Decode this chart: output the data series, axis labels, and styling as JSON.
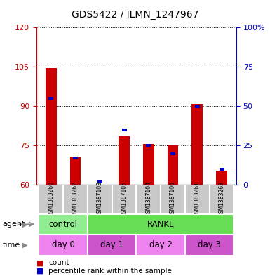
{
  "title": "GDS5422 / ILMN_1247967",
  "samples": [
    "GSM1383260",
    "GSM1383262",
    "GSM1387103",
    "GSM1387105",
    "GSM1387104",
    "GSM1387106",
    "GSM1383261",
    "GSM1383263"
  ],
  "count_values": [
    104.5,
    70.5,
    60.2,
    78.5,
    75.5,
    75.0,
    91.0,
    65.5
  ],
  "percentile_values": [
    55,
    17,
    2,
    35,
    25,
    20,
    50,
    10
  ],
  "ylim_left": [
    60,
    120
  ],
  "ylim_right": [
    0,
    100
  ],
  "yticks_left": [
    60,
    75,
    90,
    105,
    120
  ],
  "yticks_right": [
    0,
    25,
    50,
    75,
    100
  ],
  "agent_groups": [
    {
      "label": "control",
      "start": 0,
      "end": 2,
      "color": "#90EE90"
    },
    {
      "label": "RANKL",
      "start": 2,
      "end": 8,
      "color": "#66DD55"
    }
  ],
  "time_groups": [
    {
      "label": "day 0",
      "start": 0,
      "end": 2,
      "color": "#EE82EE"
    },
    {
      "label": "day 1",
      "start": 2,
      "end": 4,
      "color": "#CC55CC"
    },
    {
      "label": "day 2",
      "start": 4,
      "end": 6,
      "color": "#EE82EE"
    },
    {
      "label": "day 3",
      "start": 6,
      "end": 8,
      "color": "#CC55CC"
    }
  ],
  "bar_color_red": "#CC0000",
  "bar_color_blue": "#0000CC",
  "sample_bg": "#C8C8C8"
}
